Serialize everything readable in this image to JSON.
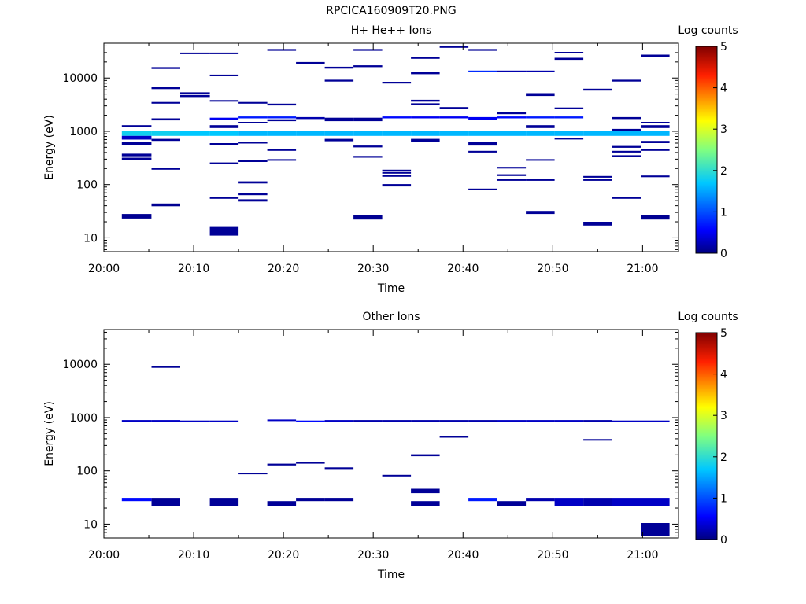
{
  "figure_title": "RPCICA160909T20.PNG",
  "colorbar_label": "Log counts",
  "colorbar_ticks": [
    "0",
    "1",
    "2",
    "3",
    "4",
    "5"
  ],
  "colorbar_colors": [
    "#000080",
    "#0000ff",
    "#00ffff",
    "#ffff00",
    "#ff0000",
    "#800000"
  ],
  "chart_data": [
    {
      "type": "heatmap",
      "title": "H+ He++ Ions",
      "xlabel": "Time",
      "ylabel": "Energy (eV)",
      "x_ticks": [
        "20:00",
        "20:10",
        "20:20",
        "20:30",
        "20:40",
        "20:50",
        "21:00"
      ],
      "y_ticks": [
        "10",
        "100",
        "1000",
        "10000"
      ],
      "xlim_minutes": [
        0,
        64
      ],
      "ylim_eV": [
        5.5,
        45000
      ],
      "y_scale": "log",
      "color_scale": {
        "label": "Log counts",
        "range": [
          0,
          5
        ]
      },
      "cells": [
        [
          2,
          5.3,
          23,
          28,
          0.08
        ],
        [
          2,
          5.3,
          1180,
          1300,
          0.1
        ],
        [
          2,
          5.3,
          820,
          1000,
          1.8
        ],
        [
          2,
          5.3,
          700,
          820,
          0.3
        ],
        [
          2,
          5.3,
          560,
          620,
          0.1
        ],
        [
          2,
          5.3,
          340,
          380,
          0.1
        ],
        [
          2,
          5.3,
          290,
          320,
          0.1
        ],
        [
          5.3,
          8.5,
          39,
          44,
          0.08
        ],
        [
          5.3,
          8.5,
          190,
          205,
          0.1
        ],
        [
          5.3,
          8.5,
          660,
          720,
          0.1
        ],
        [
          5.3,
          8.5,
          820,
          1000,
          1.8
        ],
        [
          5.3,
          8.5,
          1600,
          1750,
          0.1
        ],
        [
          5.3,
          8.5,
          3300,
          3550,
          0.1
        ],
        [
          5.3,
          8.5,
          6200,
          6700,
          0.1
        ],
        [
          5.3,
          8.5,
          14800,
          16000,
          0.1
        ],
        [
          8.5,
          11.8,
          4400,
          4800,
          0.1
        ],
        [
          8.5,
          11.8,
          5000,
          5400,
          0.1
        ],
        [
          8.5,
          11.8,
          28000,
          30000,
          0.1
        ],
        [
          8.5,
          11.8,
          820,
          1000,
          1.7
        ],
        [
          11.8,
          15.0,
          11,
          16,
          0.1
        ],
        [
          11.8,
          15.0,
          54,
          59,
          0.1
        ],
        [
          11.8,
          15.0,
          240,
          260,
          0.1
        ],
        [
          11.8,
          15.0,
          560,
          600,
          0.1
        ],
        [
          11.8,
          15.0,
          820,
          1000,
          1.7
        ],
        [
          11.8,
          15.0,
          1150,
          1300,
          0.1
        ],
        [
          11.8,
          15.0,
          1650,
          1800,
          0.5
        ],
        [
          11.8,
          15.0,
          3600,
          3850,
          0.1
        ],
        [
          11.8,
          15.0,
          10800,
          11600,
          0.1
        ],
        [
          11.8,
          15.0,
          28000,
          30000,
          0.1
        ],
        [
          15.0,
          18.2,
          48,
          53,
          0.1
        ],
        [
          15.0,
          18.2,
          63,
          68,
          0.1
        ],
        [
          15.0,
          18.2,
          105,
          115,
          0.1
        ],
        [
          15.0,
          18.2,
          265,
          285,
          0.1
        ],
        [
          15.0,
          18.2,
          590,
          640,
          0.1
        ],
        [
          15.0,
          18.2,
          820,
          1000,
          1.6
        ],
        [
          15.0,
          18.2,
          1400,
          1500,
          0.1
        ],
        [
          15.0,
          18.2,
          1750,
          1900,
          0.7
        ],
        [
          15.0,
          18.2,
          3300,
          3550,
          0.1
        ],
        [
          18.2,
          21.4,
          280,
          300,
          0.1
        ],
        [
          18.2,
          21.4,
          430,
          470,
          0.1
        ],
        [
          18.2,
          21.4,
          820,
          1000,
          1.6
        ],
        [
          18.2,
          21.4,
          1550,
          1680,
          0.1
        ],
        [
          18.2,
          21.4,
          1750,
          1900,
          0.7
        ],
        [
          18.2,
          21.4,
          3050,
          3300,
          0.1
        ],
        [
          18.2,
          21.4,
          32500,
          35000,
          0.1
        ],
        [
          21.4,
          24.6,
          820,
          1000,
          1.6
        ],
        [
          21.4,
          24.6,
          1700,
          1850,
          0.2
        ],
        [
          21.4,
          24.6,
          18500,
          20000,
          0.1
        ],
        [
          24.6,
          27.8,
          650,
          720,
          0.1
        ],
        [
          24.6,
          27.8,
          820,
          1000,
          1.6
        ],
        [
          24.6,
          27.8,
          1550,
          1800,
          0.1
        ],
        [
          24.6,
          27.8,
          8600,
          9300,
          0.1
        ],
        [
          24.6,
          27.8,
          15000,
          16300,
          0.1
        ],
        [
          27.8,
          31.0,
          22,
          27,
          0.08
        ],
        [
          27.8,
          31.0,
          320,
          345,
          0.1
        ],
        [
          27.8,
          31.0,
          500,
          540,
          0.1
        ],
        [
          27.8,
          31.0,
          820,
          1000,
          1.6
        ],
        [
          27.8,
          31.0,
          1550,
          1800,
          0.1
        ],
        [
          27.8,
          31.0,
          16000,
          17300,
          0.1
        ],
        [
          27.8,
          31.0,
          32500,
          35000,
          0.1
        ],
        [
          31.0,
          34.2,
          92,
          102,
          0.1
        ],
        [
          31.0,
          34.2,
          140,
          150,
          0.1
        ],
        [
          31.0,
          34.2,
          160,
          172,
          0.1
        ],
        [
          31.0,
          34.2,
          178,
          190,
          0.1
        ],
        [
          31.0,
          34.2,
          820,
          1000,
          1.6
        ],
        [
          31.0,
          34.2,
          1750,
          1900,
          0.6
        ],
        [
          31.0,
          34.2,
          7900,
          8500,
          0.1
        ],
        [
          34.2,
          37.4,
          630,
          720,
          0.1
        ],
        [
          34.2,
          37.4,
          820,
          1000,
          1.6
        ],
        [
          34.2,
          37.4,
          1750,
          1900,
          0.5
        ],
        [
          34.2,
          37.4,
          3100,
          3350,
          0.1
        ],
        [
          34.2,
          37.4,
          3600,
          3900,
          0.1
        ],
        [
          34.2,
          37.4,
          11800,
          12800,
          0.1
        ],
        [
          34.2,
          37.4,
          23000,
          25000,
          0.1
        ],
        [
          37.4,
          40.6,
          820,
          1000,
          1.6
        ],
        [
          37.4,
          40.6,
          1750,
          1900,
          0.5
        ],
        [
          37.4,
          40.6,
          2650,
          2850,
          0.1
        ],
        [
          37.4,
          40.6,
          37000,
          40000,
          0.1
        ],
        [
          40.6,
          43.8,
          80,
          84,
          0.1
        ],
        [
          40.6,
          43.8,
          400,
          430,
          0.1
        ],
        [
          40.6,
          43.8,
          540,
          620,
          0.1
        ],
        [
          40.6,
          43.8,
          820,
          1000,
          1.6
        ],
        [
          40.6,
          43.8,
          1650,
          1850,
          0.5
        ],
        [
          40.6,
          43.8,
          12800,
          13800,
          0.8
        ],
        [
          40.6,
          43.8,
          32500,
          35000,
          0.1
        ],
        [
          43.8,
          47.0,
          118,
          126,
          0.1
        ],
        [
          43.8,
          47.0,
          145,
          156,
          0.1
        ],
        [
          43.8,
          47.0,
          200,
          215,
          0.1
        ],
        [
          43.8,
          47.0,
          820,
          1000,
          1.6
        ],
        [
          43.8,
          47.0,
          1750,
          1900,
          0.6
        ],
        [
          43.8,
          47.0,
          2100,
          2270,
          0.1
        ],
        [
          43.8,
          47.0,
          12800,
          13800,
          0.2
        ],
        [
          47.0,
          50.2,
          28,
          32,
          0.1
        ],
        [
          47.0,
          50.2,
          118,
          126,
          0.1
        ],
        [
          47.0,
          50.2,
          280,
          300,
          0.1
        ],
        [
          47.0,
          50.2,
          820,
          1000,
          1.6
        ],
        [
          47.0,
          50.2,
          1150,
          1300,
          0.1
        ],
        [
          47.0,
          50.2,
          1750,
          1900,
          0.7
        ],
        [
          47.0,
          50.2,
          4600,
          5200,
          0.1
        ],
        [
          47.0,
          50.2,
          12800,
          13800,
          0.2
        ],
        [
          50.2,
          53.4,
          700,
          760,
          0.1
        ],
        [
          50.2,
          53.4,
          820,
          1000,
          1.6
        ],
        [
          50.2,
          53.4,
          1750,
          1900,
          0.7
        ],
        [
          50.2,
          53.4,
          2600,
          2800,
          0.1
        ],
        [
          50.2,
          53.4,
          22000,
          24000,
          0.1
        ],
        [
          50.2,
          53.4,
          29000,
          31000,
          0.1
        ],
        [
          53.4,
          56.6,
          17,
          20,
          0.1
        ],
        [
          53.4,
          56.6,
          118,
          126,
          0.1
        ],
        [
          53.4,
          56.6,
          135,
          145,
          0.1
        ],
        [
          53.4,
          56.6,
          820,
          1000,
          1.6
        ],
        [
          53.4,
          56.6,
          5800,
          6300,
          0.1
        ],
        [
          56.6,
          59.8,
          54,
          59,
          0.1
        ],
        [
          56.6,
          59.8,
          330,
          355,
          0.1
        ],
        [
          56.6,
          59.8,
          400,
          430,
          0.1
        ],
        [
          56.6,
          59.8,
          490,
          530,
          0.1
        ],
        [
          56.6,
          59.8,
          820,
          1000,
          1.6
        ],
        [
          56.6,
          59.8,
          1030,
          1110,
          0.1
        ],
        [
          56.6,
          59.8,
          1700,
          1850,
          0.1
        ],
        [
          56.6,
          59.8,
          8600,
          9300,
          0.1
        ],
        [
          59.8,
          63,
          22,
          27,
          0.08
        ],
        [
          59.8,
          63,
          138,
          148,
          0.1
        ],
        [
          59.8,
          63,
          430,
          470,
          0.1
        ],
        [
          59.8,
          63,
          600,
          660,
          0.1
        ],
        [
          59.8,
          63,
          820,
          1000,
          1.6
        ],
        [
          59.8,
          63,
          1150,
          1300,
          0.1
        ],
        [
          59.8,
          63,
          1400,
          1500,
          0.1
        ],
        [
          59.8,
          63,
          25000,
          27500,
          0.1
        ]
      ]
    },
    {
      "type": "heatmap",
      "title": "Other Ions",
      "xlabel": "Time",
      "ylabel": "Energy (eV)",
      "x_ticks": [
        "20:00",
        "20:10",
        "20:20",
        "20:30",
        "20:40",
        "20:50",
        "21:00"
      ],
      "y_ticks": [
        "10",
        "100",
        "1000",
        "10000"
      ],
      "xlim_minutes": [
        0,
        64
      ],
      "ylim_eV": [
        5.5,
        45000
      ],
      "y_scale": "log",
      "color_scale": {
        "label": "Log counts",
        "range": [
          0,
          5
        ]
      },
      "cells": [
        [
          2,
          5.3,
          27,
          31,
          0.6
        ],
        [
          2,
          5.3,
          820,
          900,
          0.3
        ],
        [
          5.3,
          8.5,
          22,
          31,
          0.1
        ],
        [
          5.3,
          8.5,
          820,
          900,
          0.3
        ],
        [
          5.3,
          8.5,
          8600,
          9300,
          0.1
        ],
        [
          8.5,
          11.8,
          820,
          880,
          0.3
        ],
        [
          11.8,
          15.0,
          22,
          31,
          0.1
        ],
        [
          11.8,
          15.0,
          820,
          880,
          0.3
        ],
        [
          15.0,
          18.2,
          87,
          92,
          0.1
        ],
        [
          18.2,
          21.4,
          22,
          27,
          0.1
        ],
        [
          18.2,
          21.4,
          126,
          136,
          0.1
        ],
        [
          18.2,
          21.4,
          860,
          920,
          0.3
        ],
        [
          21.4,
          24.6,
          27,
          31,
          0.1
        ],
        [
          21.4,
          24.6,
          139,
          146,
          0.1
        ],
        [
          21.4,
          24.6,
          820,
          880,
          0.6
        ],
        [
          24.6,
          27.8,
          27,
          31,
          0.1
        ],
        [
          24.6,
          27.8,
          108,
          116,
          0.1
        ],
        [
          24.6,
          27.8,
          820,
          900,
          0.3
        ],
        [
          27.8,
          31.0,
          820,
          900,
          0.2
        ],
        [
          31.0,
          34.2,
          80,
          84,
          0.1
        ],
        [
          31.0,
          34.2,
          820,
          900,
          0.2
        ],
        [
          34.2,
          37.4,
          22,
          27,
          0.1
        ],
        [
          34.2,
          37.4,
          38,
          46,
          0.1
        ],
        [
          34.2,
          37.4,
          188,
          205,
          0.1
        ],
        [
          34.2,
          37.4,
          820,
          900,
          0.2
        ],
        [
          37.4,
          40.6,
          420,
          450,
          0.1
        ],
        [
          37.4,
          40.6,
          820,
          900,
          0.2
        ],
        [
          40.6,
          43.8,
          27,
          31,
          0.7
        ],
        [
          40.6,
          43.8,
          820,
          900,
          0.2
        ],
        [
          43.8,
          47.0,
          22,
          27,
          0.1
        ],
        [
          43.8,
          47.0,
          820,
          900,
          0.3
        ],
        [
          47.0,
          50.2,
          27,
          31,
          0.2
        ],
        [
          47.0,
          50.2,
          820,
          900,
          0.3
        ],
        [
          50.2,
          53.4,
          22,
          31,
          0.3
        ],
        [
          50.2,
          53.4,
          820,
          900,
          0.3
        ],
        [
          53.4,
          56.6,
          22,
          31,
          0.2
        ],
        [
          53.4,
          56.6,
          370,
          395,
          0.1
        ],
        [
          53.4,
          56.6,
          820,
          900,
          0.2
        ],
        [
          56.6,
          59.8,
          22,
          31,
          0.3
        ],
        [
          56.6,
          59.8,
          820,
          880,
          0.3
        ],
        [
          59.8,
          63,
          22,
          31,
          0.3
        ],
        [
          59.8,
          63,
          6,
          10.5,
          0.1
        ],
        [
          59.8,
          63,
          820,
          880,
          0.3
        ]
      ]
    }
  ]
}
